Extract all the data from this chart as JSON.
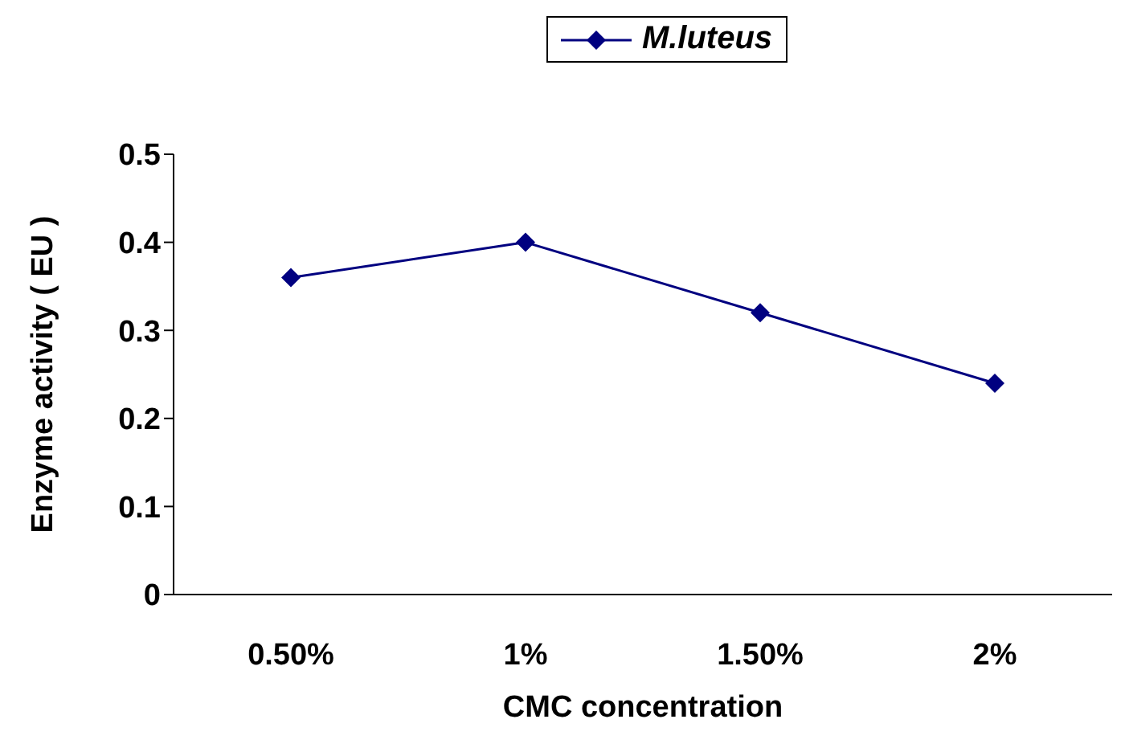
{
  "chart_data": {
    "type": "line",
    "xlabel": "CMC concentration",
    "ylabel": "Enzyme activity ( EU )",
    "categories": [
      "0.50%",
      "1%",
      "1.50%",
      "2%"
    ],
    "series": [
      {
        "name": "M.luteus",
        "color": "#000080",
        "values": [
          0.36,
          0.4,
          0.32,
          0.24
        ]
      }
    ],
    "ylim": [
      0,
      0.5
    ],
    "yticks": [
      0,
      0.1,
      0.2,
      0.3,
      0.4,
      0.5
    ],
    "grid": false,
    "legend": "top",
    "marker": "diamond",
    "line_style": "solid"
  }
}
